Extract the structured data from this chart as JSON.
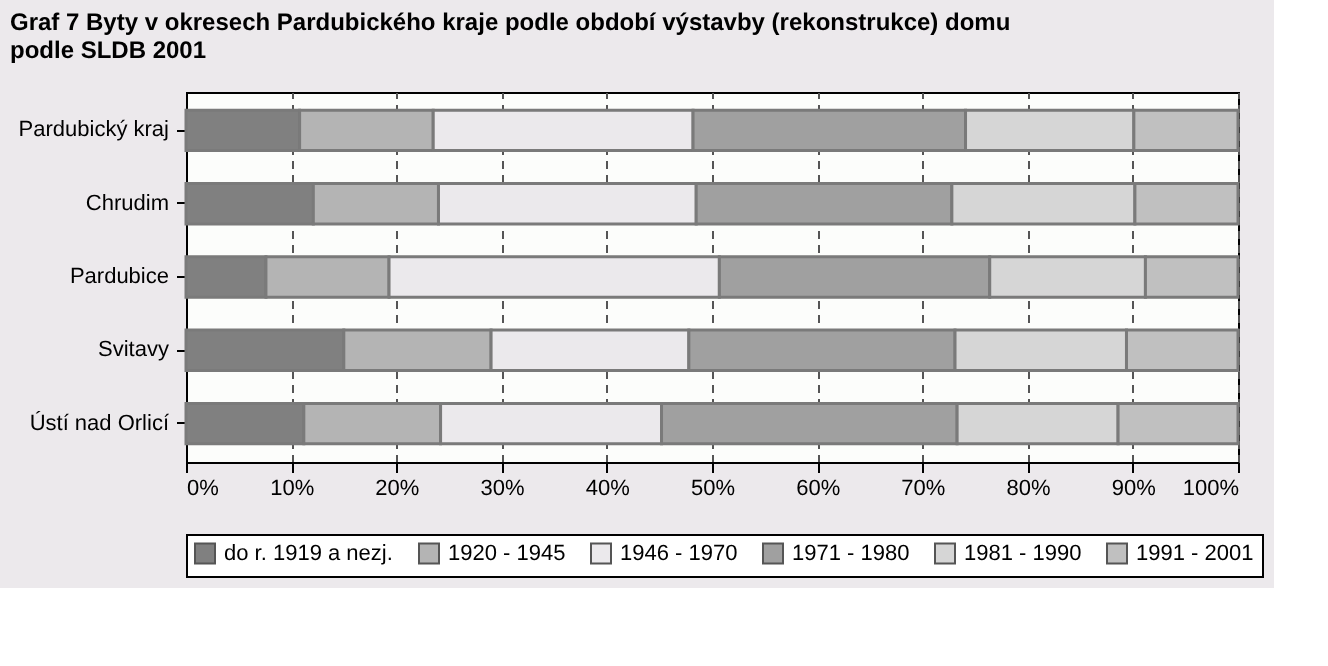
{
  "chart_data": {
    "type": "bar",
    "orientation": "horizontal",
    "stacked": true,
    "title": [
      "Graf 7 Byty v okresech Pardubického kraje podle období výstavby (rekonstrukce) domu",
      "podle SLDB 2001"
    ],
    "categories": [
      "Pardubický kraj",
      "Chrudim",
      "Pardubice",
      "Svitavy",
      "Ústí nad Orlicí"
    ],
    "series": [
      {
        "name": "do r. 1919 a nezj.",
        "color": "#808080",
        "values": [
          10.8,
          12.1,
          7.6,
          15.0,
          11.2
        ]
      },
      {
        "name": "1920 - 1945",
        "color": "#b4b4b4",
        "values": [
          12.7,
          11.9,
          11.7,
          14.0,
          13.0
        ]
      },
      {
        "name": "1946 - 1970",
        "color": "#ebe9ec",
        "values": [
          24.7,
          24.5,
          31.4,
          18.8,
          21.0
        ]
      },
      {
        "name": "1971 - 1980",
        "color": "#a0a0a0",
        "values": [
          25.9,
          24.3,
          25.7,
          25.3,
          28.1
        ]
      },
      {
        "name": "1981 - 1990",
        "color": "#d6d6d6",
        "values": [
          16.0,
          17.4,
          14.8,
          16.3,
          15.3
        ]
      },
      {
        "name": "1991 - 2001",
        "color": "#c0c0c0",
        "values": [
          9.9,
          9.8,
          8.8,
          10.6,
          11.4
        ]
      }
    ],
    "xlim": [
      0,
      100
    ],
    "xticks": [
      {
        "value": 0,
        "label": "0%"
      },
      {
        "value": 10,
        "label": "10%"
      },
      {
        "value": 20,
        "label": "20%"
      },
      {
        "value": 30,
        "label": "30%"
      },
      {
        "value": 40,
        "label": "40%"
      },
      {
        "value": 50,
        "label": "50%"
      },
      {
        "value": 60,
        "label": "60%"
      },
      {
        "value": 70,
        "label": "70%"
      },
      {
        "value": 80,
        "label": "80%"
      },
      {
        "value": 90,
        "label": "90%"
      },
      {
        "value": 100,
        "label": "100%"
      }
    ],
    "grid": "x",
    "legend": "bottom"
  }
}
